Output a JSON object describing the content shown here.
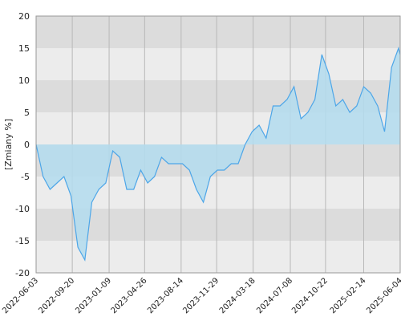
{
  "chart_data": {
    "type": "area",
    "y_label": "[Zmiany %]",
    "x": [
      "2022-06-03",
      "2022-06-24",
      "2022-07-15",
      "2022-08-05",
      "2022-08-26",
      "2022-09-16",
      "2022-10-07",
      "2022-10-28",
      "2022-11-18",
      "2022-12-09",
      "2022-12-30",
      "2023-01-20",
      "2023-02-10",
      "2023-03-03",
      "2023-03-24",
      "2023-04-14",
      "2023-05-05",
      "2023-05-26",
      "2023-06-16",
      "2023-07-07",
      "2023-07-28",
      "2023-08-18",
      "2023-09-08",
      "2023-09-29",
      "2023-10-20",
      "2023-11-10",
      "2023-12-01",
      "2023-12-22",
      "2024-01-12",
      "2024-02-02",
      "2024-02-23",
      "2024-03-15",
      "2024-04-05",
      "2024-04-26",
      "2024-05-17",
      "2024-06-07",
      "2024-06-28",
      "2024-07-19",
      "2024-08-09",
      "2024-08-30",
      "2024-09-20",
      "2024-10-11",
      "2024-11-01",
      "2024-11-22",
      "2024-12-13",
      "2025-01-03",
      "2025-01-24",
      "2025-02-14",
      "2025-03-07",
      "2025-03-28",
      "2025-04-18",
      "2025-05-09",
      "2025-05-30",
      "2025-06-04"
    ],
    "values": [
      0,
      -5,
      -7,
      -6,
      -5,
      -8,
      -16,
      -18,
      -9,
      -7,
      -6,
      -1,
      -2,
      -7,
      -7,
      -4,
      -6,
      -5,
      -2,
      -3,
      -3,
      -3,
      -4,
      -7,
      -9,
      -5,
      -4,
      -4,
      -3,
      -3,
      0,
      2,
      3,
      1,
      6,
      6,
      7,
      9,
      4,
      5,
      7,
      14,
      11,
      6,
      7,
      5,
      6,
      9,
      8,
      6,
      2,
      12,
      15,
      14
    ],
    "color": "#4da6e8",
    "fill": "#b3dcee",
    "xlim": [
      "2022-06-03",
      "2025-06-04"
    ],
    "xticks": [
      "2022-06-03",
      "2022-09-20",
      "2023-01-09",
      "2023-04-26",
      "2023-08-14",
      "2023-11-29",
      "2024-03-18",
      "2024-07-08",
      "2024-10-22",
      "2025-02-14",
      "2025-06-04"
    ],
    "ylim": [
      -20,
      20
    ],
    "yticks": [
      -20,
      -15,
      -10,
      -5,
      0,
      5,
      10,
      15,
      20
    ],
    "grid": true
  }
}
